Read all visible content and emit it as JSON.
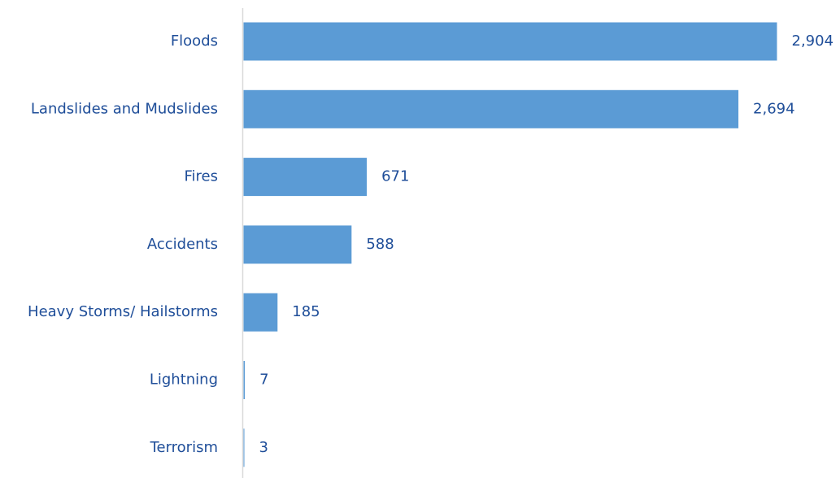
{
  "chart_data": {
    "type": "bar",
    "orientation": "horizontal",
    "categories": [
      "Floods",
      "Landslides and Mudslides",
      "Fires",
      "Accidents",
      "Heavy Storms/ Hailstorms",
      "Lightning",
      "Terrorism"
    ],
    "values": [
      2904,
      2694,
      671,
      588,
      185,
      7,
      3
    ],
    "value_labels": [
      "2,904",
      "2,694",
      "671",
      "588",
      "185",
      "7",
      "3"
    ],
    "title": "",
    "xlabel": "",
    "ylabel": "",
    "xlim": [
      0,
      2904
    ],
    "grid": false,
    "legend": "none"
  },
  "colors": {
    "bar": "#5b9bd5",
    "text": "#1f4e99",
    "axis": "#d9d9d9"
  }
}
